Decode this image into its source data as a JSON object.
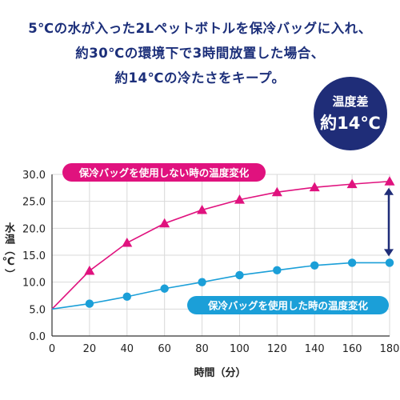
{
  "headline": {
    "line1": "5℃の水が入った2Lペットボトルを保冷バッグに入れ、",
    "line2": "約30℃の環境下で3時間放置した場合、",
    "line3": "約14℃の冷たさをキープ。"
  },
  "badge": {
    "label": "温度差",
    "value": "約14℃"
  },
  "colors": {
    "pink": "#e0127e",
    "blue": "#1b9fd8",
    "navy": "#1f2d78",
    "grid": "#d9d9d9",
    "axis": "#333333"
  },
  "chart_data": {
    "type": "line",
    "xlabel": "時間（分）",
    "ylabel": "水温（℃）",
    "x": [
      0,
      20,
      40,
      60,
      80,
      100,
      120,
      140,
      160,
      180
    ],
    "xlim": [
      0,
      180
    ],
    "ylim": [
      0,
      30
    ],
    "xticks": [
      "0",
      "20",
      "40",
      "60",
      "80",
      "100",
      "120",
      "140",
      "160",
      "180"
    ],
    "yticks": [
      "0.0",
      "5.0",
      "10.0",
      "15.0",
      "20.0",
      "25.0",
      "30.0"
    ],
    "grid": true,
    "series": [
      {
        "name": "保冷バッグを使用しない時の温度変化",
        "marker": "triangle",
        "values": [
          5.0,
          12.1,
          17.3,
          20.9,
          23.4,
          25.3,
          26.7,
          27.6,
          28.2,
          28.7
        ]
      },
      {
        "name": "保冷バッグを使用した時の温度変化",
        "marker": "circle",
        "values": [
          5.0,
          6.0,
          7.3,
          8.8,
          10.0,
          11.3,
          12.2,
          13.1,
          13.6,
          13.6
        ]
      }
    ]
  }
}
